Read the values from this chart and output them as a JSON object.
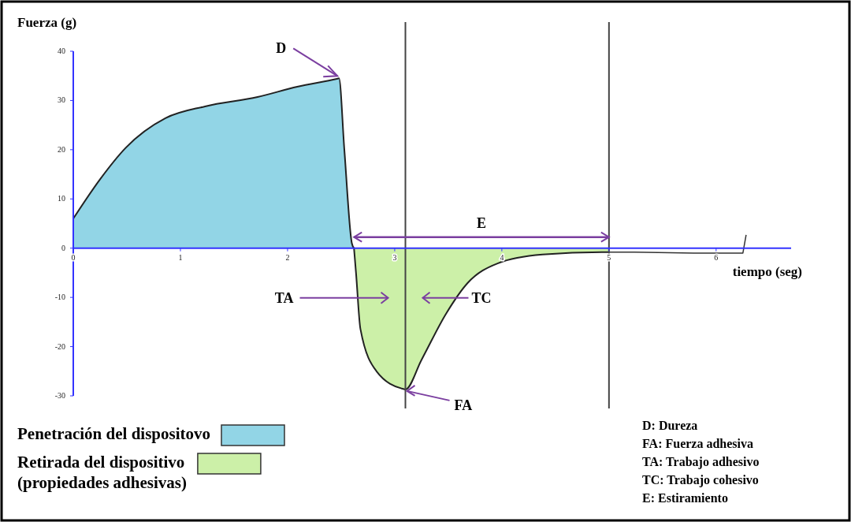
{
  "chart_data": {
    "type": "area",
    "xlabel": "tiempo (seg)",
    "ylabel": "Fuerza (g)",
    "xlim": [
      0,
      6.7
    ],
    "ylim": [
      -30,
      40
    ],
    "xticks": [
      0,
      1,
      2,
      3,
      4,
      5,
      6
    ],
    "yticks": [
      -30,
      -20,
      -10,
      0,
      10,
      20,
      30,
      40
    ],
    "grid": false,
    "legend": "bottom left",
    "series": [
      {
        "name": "Penetración del dispositovo",
        "color": "#92d5e6",
        "x": [
          0,
          0.25,
          0.49,
          0.86,
          1.23,
          1.72,
          2.09,
          2.46,
          2.48,
          2.53,
          2.6,
          2.62
        ],
        "values": [
          6,
          14,
          20.4,
          26.4,
          28.8,
          30.7,
          32.8,
          34.4,
          34.5,
          20,
          1,
          0
        ]
      },
      {
        "name": "Retirada del dispositivo (propiedades adhesivas)",
        "color": "#ccf0a8",
        "x": [
          2.62,
          2.64,
          2.68,
          2.83,
          3.08,
          3.1,
          3.25,
          3.48,
          3.68,
          3.96,
          4.38,
          4.95,
          5
        ],
        "values": [
          0,
          -5.3,
          -16.4,
          -25,
          -28.6,
          -28.7,
          -22.7,
          -13.3,
          -7.1,
          -3.1,
          -1.3,
          -0.8,
          -0.8
        ]
      },
      {
        "type": "line",
        "color": "#333333",
        "x": [
          5,
          5.24,
          5.79,
          6.25,
          6.28
        ],
        "values": [
          -0.8,
          -0.8,
          -1,
          -1,
          2.7
        ]
      }
    ],
    "ref_lines": [
      {
        "axis": "x",
        "value": 3.1,
        "color": "#444444"
      },
      {
        "axis": "x",
        "value": 5,
        "color": "#444444"
      }
    ],
    "annotations": [
      {
        "text": "D",
        "x": 2.48,
        "y": 34.5
      },
      {
        "text": "FA",
        "x": 3.1,
        "y": -28.7
      },
      "E",
      "TA",
      "TC",
      "D: Dureza",
      "FA: Fuerza adhesiva",
      "TA: Trabajo adhesivo",
      "TC: Trabajo cohesivo",
      "E: Estiramiento"
    ]
  }
}
